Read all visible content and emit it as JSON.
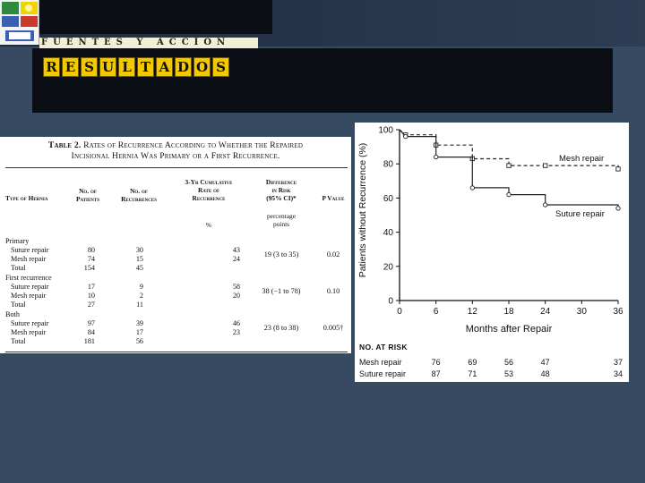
{
  "slide": {
    "subtitle_text": "FUENTES Y ACCION",
    "title_letters": [
      "R",
      "E",
      "S",
      "U",
      "L",
      "T",
      "A",
      "D",
      "O",
      "S"
    ]
  },
  "table": {
    "caption_bold": "Table 2.",
    "caption_line1": "Rates of Recurrence According to Whether the Repaired",
    "caption_line2": "Incisional Hernia Was Primary or a First Recurrence.",
    "headers": {
      "type": "Type of Hernia",
      "patients": [
        "No. of",
        "Patients"
      ],
      "recurrences": [
        "No. of",
        "Recurrences"
      ],
      "rate": [
        "3-Yr Cumulative",
        "Rate of",
        "Recurrence"
      ],
      "difference": [
        "Difference",
        "in Risk",
        "(95% CI)*"
      ],
      "pvalue": "P Value"
    },
    "sub_headers": {
      "rate_unit": "%",
      "difference_unit": [
        "percentage",
        "points"
      ]
    },
    "groups": [
      {
        "label": "Primary",
        "rows": [
          {
            "label": "Suture repair",
            "patients": "80",
            "recurrences": "30",
            "rate": "43"
          },
          {
            "label": "Mesh repair",
            "patients": "74",
            "recurrences": "15",
            "rate": "24"
          },
          {
            "label": "Total",
            "patients": "154",
            "recurrences": "45",
            "rate": ""
          }
        ],
        "difference": "19 (3 to 35)",
        "pvalue": "0.02"
      },
      {
        "label": "First recurrence",
        "rows": [
          {
            "label": "Suture repair",
            "patients": "17",
            "recurrences": "9",
            "rate": "58"
          },
          {
            "label": "Mesh repair",
            "patients": "10",
            "recurrences": "2",
            "rate": "20"
          },
          {
            "label": "Total",
            "patients": "27",
            "recurrences": "11",
            "rate": ""
          }
        ],
        "difference": "38 (−1 to 78)",
        "pvalue": "0.10"
      },
      {
        "label": "Both",
        "rows": [
          {
            "label": "Suture repair",
            "patients": "97",
            "recurrences": "39",
            "rate": "46"
          },
          {
            "label": "Mesh repair",
            "patients": "84",
            "recurrences": "17",
            "rate": "23"
          },
          {
            "label": "Total",
            "patients": "181",
            "recurrences": "56",
            "rate": ""
          }
        ],
        "difference": "23 (8 to 38)",
        "pvalue": "0.005†"
      }
    ]
  },
  "chart_data": {
    "type": "line",
    "xlabel": "Months after Repair",
    "ylabel": "Patients without Recurrence (%)",
    "xlim": [
      0,
      36
    ],
    "ylim": [
      0,
      100
    ],
    "xticks": [
      0,
      6,
      12,
      18,
      24,
      30,
      36
    ],
    "yticks": [
      0,
      20,
      40,
      60,
      80,
      100
    ],
    "step": true,
    "series": [
      {
        "name": "Mesh repair",
        "style": "dashed",
        "marker": "square",
        "points": [
          [
            0,
            100
          ],
          [
            1,
            97
          ],
          [
            6,
            97
          ],
          [
            6,
            91
          ],
          [
            12,
            91
          ],
          [
            12,
            83
          ],
          [
            18,
            83
          ],
          [
            18,
            79
          ],
          [
            36,
            79
          ],
          [
            36,
            77
          ]
        ],
        "markers": [
          [
            1,
            97
          ],
          [
            6,
            91
          ],
          [
            12,
            83
          ],
          [
            18,
            79
          ],
          [
            24,
            79
          ],
          [
            36,
            77
          ]
        ]
      },
      {
        "name": "Suture repair",
        "style": "solid",
        "marker": "circle",
        "points": [
          [
            0,
            100
          ],
          [
            1,
            96
          ],
          [
            6,
            96
          ],
          [
            6,
            84
          ],
          [
            12,
            84
          ],
          [
            12,
            66
          ],
          [
            18,
            66
          ],
          [
            18,
            62
          ],
          [
            24,
            62
          ],
          [
            24,
            56
          ],
          [
            36,
            56
          ],
          [
            36,
            54
          ]
        ],
        "markers": [
          [
            1,
            96
          ],
          [
            6,
            84
          ],
          [
            12,
            66
          ],
          [
            18,
            62
          ],
          [
            24,
            56
          ],
          [
            36,
            54
          ]
        ]
      }
    ],
    "at_risk": {
      "heading": "No. at Risk",
      "rows": [
        {
          "name": "Mesh repair",
          "values": [
            "76",
            "69",
            "56",
            "47",
            "37"
          ]
        },
        {
          "name": "Suture repair",
          "values": [
            "87",
            "71",
            "53",
            "48",
            "34"
          ]
        }
      ],
      "at_months": [
        6,
        12,
        18,
        24,
        36
      ]
    }
  }
}
